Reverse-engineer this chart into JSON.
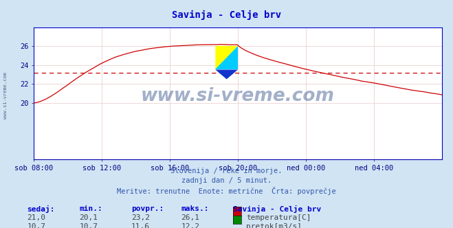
{
  "title": "Savinja - Celje brv",
  "title_color": "#0000cc",
  "bg_color": "#d0e4f4",
  "plot_bg_color": "#ffffff",
  "grid_color": "#e8c8c8",
  "xlabel_ticks": [
    "sob 08:00",
    "sob 12:00",
    "sob 16:00",
    "sob 20:00",
    "ned 00:00",
    "ned 04:00"
  ],
  "yticks_temp": [
    20,
    22,
    24,
    26
  ],
  "ylim_temp": [
    14,
    28
  ],
  "ylim_flow": [
    0,
    28
  ],
  "temp_color": "#cc0000",
  "flow_color": "#008800",
  "temp_avg": 23.2,
  "flow_avg": 11.6,
  "flow_display_scale": 1.2,
  "watermark": "www.si-vreme.com",
  "watermark_color": "#1a3a7a",
  "sub_text1": "Slovenija / reke in morje.",
  "sub_text2": "zadnji dan / 5 minut.",
  "sub_text3": "Meritve: trenutne  Enote: metrične  Črta: povprečje",
  "legend_title": "Savinja - Celje brv",
  "legend_temp_label": "temperatura[C]",
  "legend_flow_label": "pretok[m3/s]",
  "table_headers": [
    "sedaj:",
    "min.:",
    "povpr.:",
    "maks.:"
  ],
  "table_temp": [
    "21,0",
    "20,1",
    "23,2",
    "26,1"
  ],
  "table_flow": [
    "10,7",
    "10,7",
    "11,6",
    "12,2"
  ],
  "sub_text_color": "#3355aa",
  "table_header_color": "#0000cc",
  "table_value_color": "#444444",
  "axis_color": "#0000cc",
  "tick_color": "#000080",
  "left_label": "www.si-vreme.com"
}
